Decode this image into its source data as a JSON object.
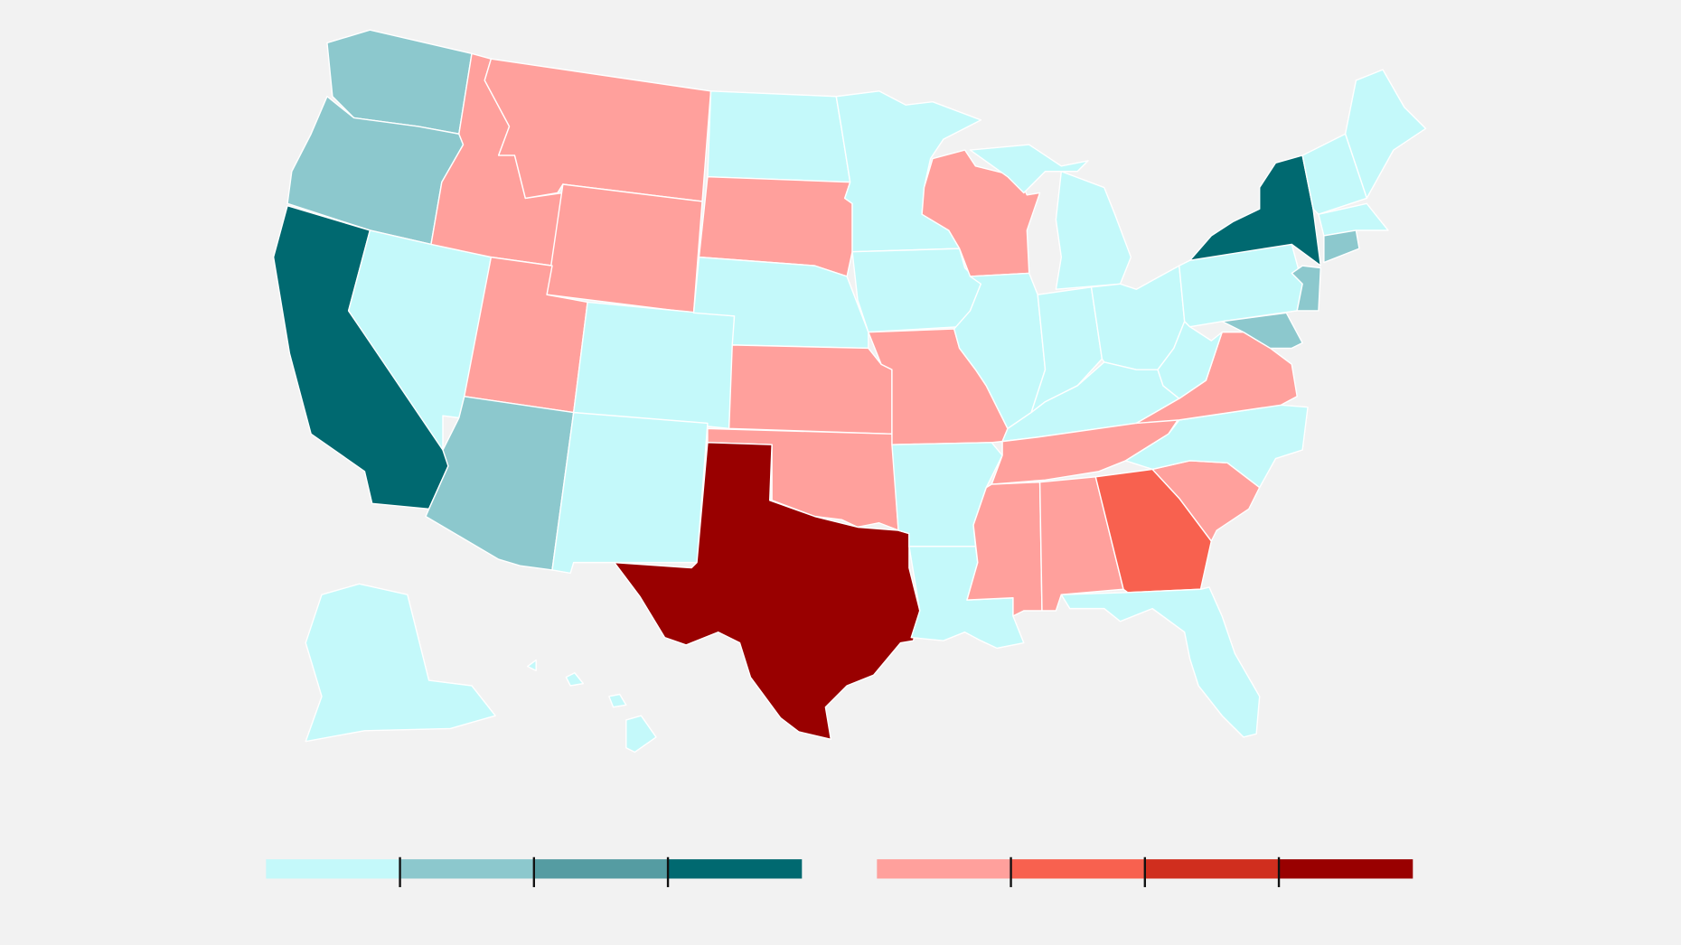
{
  "legend": {
    "colors": [
      "#c4f9fa",
      "#8cc8cd",
      "#559ca2",
      "#006970",
      "#ffa09c",
      "#f8614f",
      "#d02e1e",
      "#990000"
    ]
  }
}
